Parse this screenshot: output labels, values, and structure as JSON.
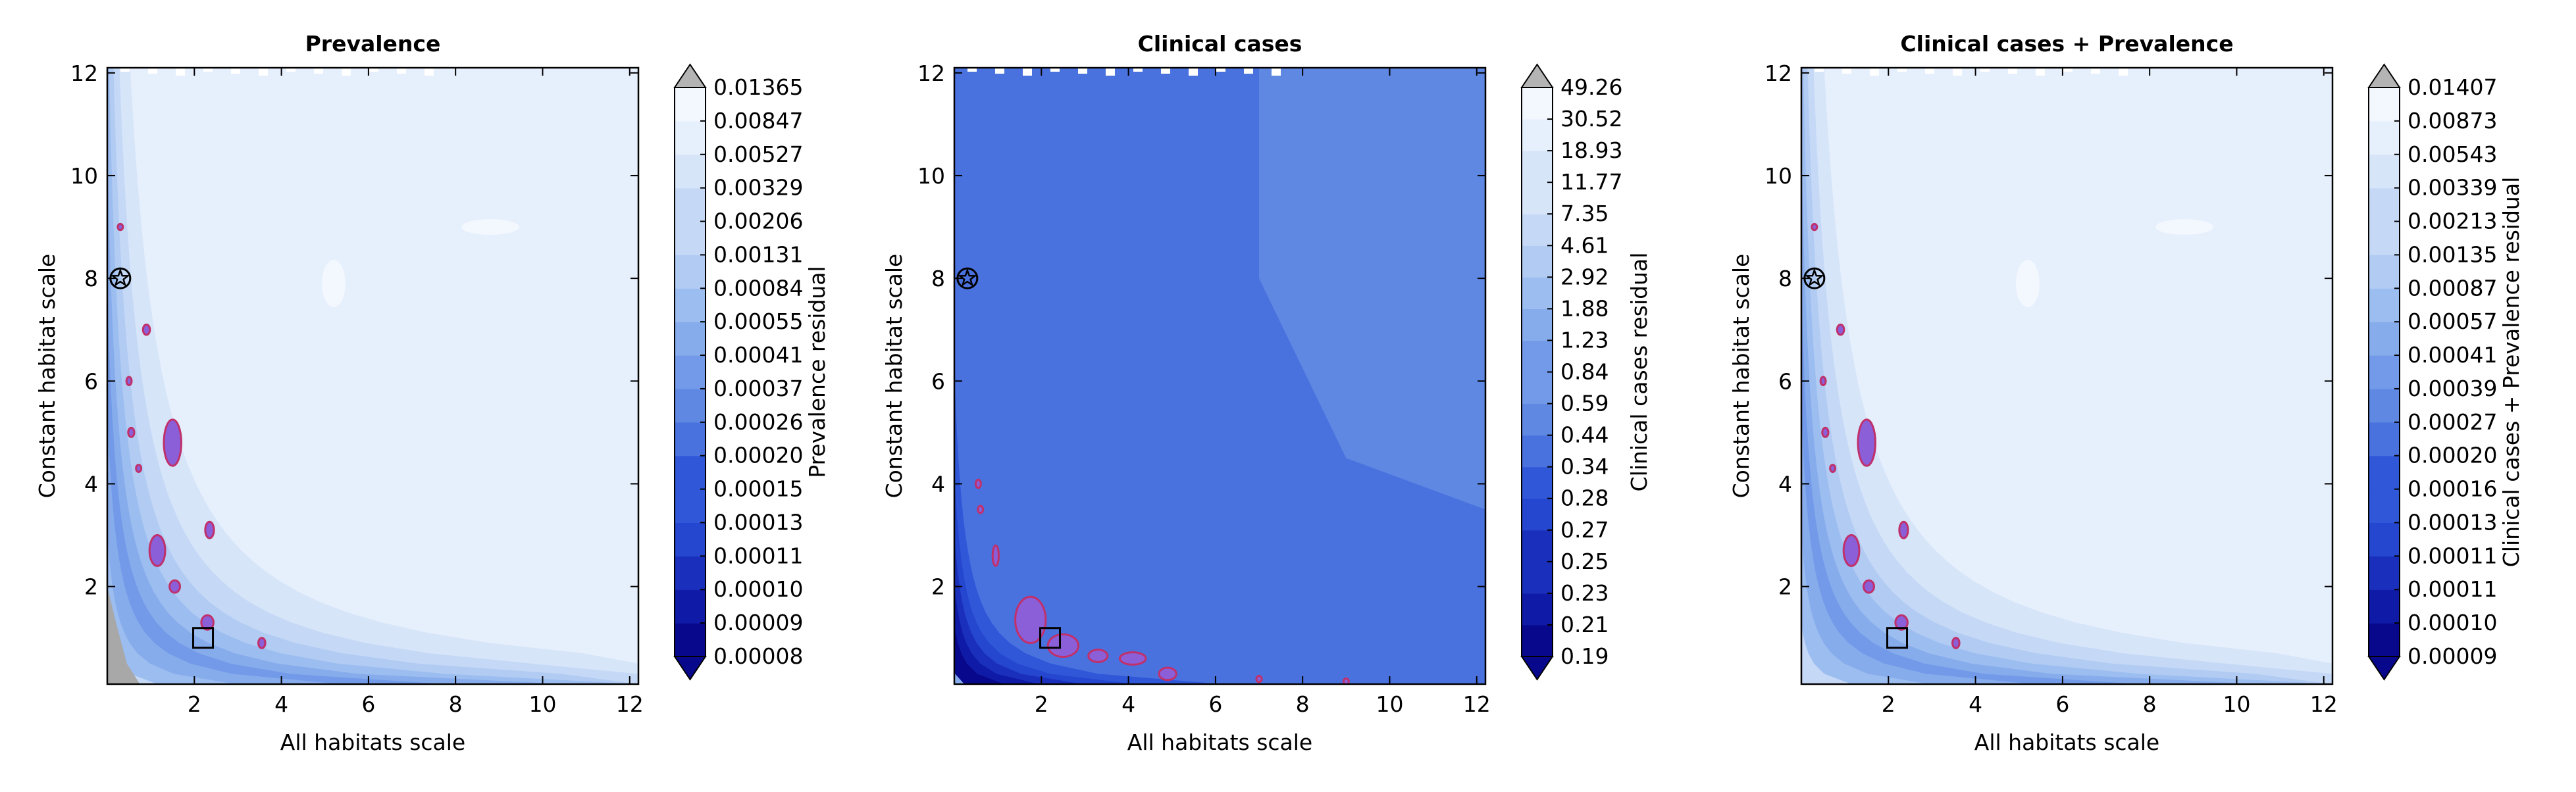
{
  "colors": {
    "palette": [
      "#08088c",
      "#0f1ba6",
      "#1a30bd",
      "#2546cf",
      "#3057d8",
      "#4a72df",
      "#5f88e3",
      "#729ae8",
      "#87acec",
      "#9cbdf0",
      "#b1cbf3",
      "#c5d9f6",
      "#d7e5f9",
      "#e6effc",
      "#f3f7fe"
    ],
    "over": "#b4b4b4",
    "under": "#08088c",
    "highlight_fill": "#8a5fd8",
    "highlight_edge": "#c0306a",
    "grey_region": "#a8a8a8"
  },
  "chart_data": [
    {
      "type": "heatmap",
      "title": "Prevalence",
      "xlabel": "All habitats scale",
      "ylabel": "Constant habitat scale",
      "xlim": [
        0,
        12.2
      ],
      "ylim": [
        0.1,
        12.1
      ],
      "xticks": [
        "2",
        "4",
        "6",
        "8",
        "10",
        "12"
      ],
      "yticks": [
        "2",
        "4",
        "6",
        "8",
        "10",
        "12"
      ],
      "colorbar_label": "Prevalence residual",
      "colorbar_levels": [
        "0.00008",
        "0.00009",
        "0.00010",
        "0.00011",
        "0.00013",
        "0.00015",
        "0.00020",
        "0.00026",
        "0.00037",
        "0.00041",
        "0.00055",
        "0.00084",
        "0.00131",
        "0.00206",
        "0.00329",
        "0.00527",
        "0.00847",
        "0.01365"
      ],
      "colorbar_extend": "both",
      "grey_region": true,
      "markers": [
        {
          "type": "star",
          "x": 0.3,
          "y": 8.0
        },
        {
          "type": "square",
          "x": 2.2,
          "y": 1.0
        }
      ],
      "highlight_regions": [
        {
          "x": 1.5,
          "y": 4.8,
          "rx": 0.2,
          "ry": 0.45
        },
        {
          "x": 1.15,
          "y": 2.7,
          "rx": 0.18,
          "ry": 0.3
        },
        {
          "x": 2.35,
          "y": 3.1,
          "rx": 0.1,
          "ry": 0.16
        },
        {
          "x": 1.55,
          "y": 2.0,
          "rx": 0.12,
          "ry": 0.12
        },
        {
          "x": 2.3,
          "y": 1.3,
          "rx": 0.14,
          "ry": 0.14
        },
        {
          "x": 3.55,
          "y": 0.9,
          "rx": 0.08,
          "ry": 0.1
        },
        {
          "x": 0.55,
          "y": 5.0,
          "rx": 0.07,
          "ry": 0.09
        },
        {
          "x": 0.9,
          "y": 7.0,
          "rx": 0.08,
          "ry": 0.1
        },
        {
          "x": 0.5,
          "y": 6.0,
          "rx": 0.06,
          "ry": 0.08
        },
        {
          "x": 0.72,
          "y": 4.3,
          "rx": 0.05,
          "ry": 0.07
        },
        {
          "x": 0.3,
          "y": 9.0,
          "rx": 0.05,
          "ry": 0.06
        }
      ]
    },
    {
      "type": "heatmap",
      "title": "Clinical cases",
      "xlabel": "All habitats scale",
      "ylabel": "Constant habitat scale",
      "xlim": [
        0,
        12.2
      ],
      "ylim": [
        0.1,
        12.1
      ],
      "xticks": [
        "2",
        "4",
        "6",
        "8",
        "10",
        "12"
      ],
      "yticks": [
        "2",
        "4",
        "6",
        "8",
        "10",
        "12"
      ],
      "colorbar_label": "Clinical cases residual",
      "colorbar_levels": [
        "0.19",
        "0.21",
        "0.23",
        "0.25",
        "0.27",
        "0.28",
        "0.34",
        "0.44",
        "0.59",
        "0.84",
        "1.23",
        "1.88",
        "2.92",
        "4.61",
        "7.35",
        "11.77",
        "18.93",
        "30.52",
        "49.26"
      ],
      "colorbar_extend": "both",
      "grey_region": false,
      "markers": [
        {
          "type": "star",
          "x": 0.3,
          "y": 8.0
        },
        {
          "type": "square",
          "x": 2.2,
          "y": 1.0
        }
      ],
      "highlight_regions": [
        {
          "x": 1.75,
          "y": 1.35,
          "rx": 0.35,
          "ry": 0.45
        },
        {
          "x": 2.5,
          "y": 0.85,
          "rx": 0.35,
          "ry": 0.22
        },
        {
          "x": 3.3,
          "y": 0.65,
          "rx": 0.22,
          "ry": 0.12
        },
        {
          "x": 4.1,
          "y": 0.6,
          "rx": 0.3,
          "ry": 0.12
        },
        {
          "x": 4.9,
          "y": 0.3,
          "rx": 0.2,
          "ry": 0.12
        },
        {
          "x": 0.95,
          "y": 2.6,
          "rx": 0.07,
          "ry": 0.2
        },
        {
          "x": 0.55,
          "y": 4.0,
          "rx": 0.06,
          "ry": 0.08
        },
        {
          "x": 0.6,
          "y": 3.5,
          "rx": 0.05,
          "ry": 0.07
        },
        {
          "x": 7.0,
          "y": 0.2,
          "rx": 0.05,
          "ry": 0.06
        },
        {
          "x": 9.0,
          "y": 0.15,
          "rx": 0.06,
          "ry": 0.06
        }
      ]
    },
    {
      "type": "heatmap",
      "title": "Clinical cases + Prevalence",
      "xlabel": "All habitats scale",
      "ylabel": "Constant habitat scale",
      "xlim": [
        0,
        12.2
      ],
      "ylim": [
        0.1,
        12.1
      ],
      "xticks": [
        "2",
        "4",
        "6",
        "8",
        "10",
        "12"
      ],
      "yticks": [
        "2",
        "4",
        "6",
        "8",
        "10",
        "12"
      ],
      "colorbar_label": "Clinical cases + Prevalence residual",
      "colorbar_levels": [
        "0.00009",
        "0.00010",
        "0.00011",
        "0.00011",
        "0.00013",
        "0.00016",
        "0.00020",
        "0.00027",
        "0.00039",
        "0.00041",
        "0.00057",
        "0.00087",
        "0.00135",
        "0.00213",
        "0.00339",
        "0.00543",
        "0.00873",
        "0.01407"
      ],
      "colorbar_extend": "both",
      "grey_region": false,
      "markers": [
        {
          "type": "star",
          "x": 0.3,
          "y": 8.0
        },
        {
          "type": "square",
          "x": 2.2,
          "y": 1.0
        }
      ],
      "highlight_regions": [
        {
          "x": 1.5,
          "y": 4.8,
          "rx": 0.2,
          "ry": 0.45
        },
        {
          "x": 1.15,
          "y": 2.7,
          "rx": 0.18,
          "ry": 0.3
        },
        {
          "x": 2.35,
          "y": 3.1,
          "rx": 0.1,
          "ry": 0.16
        },
        {
          "x": 1.55,
          "y": 2.0,
          "rx": 0.12,
          "ry": 0.12
        },
        {
          "x": 2.3,
          "y": 1.3,
          "rx": 0.14,
          "ry": 0.14
        },
        {
          "x": 3.55,
          "y": 0.9,
          "rx": 0.08,
          "ry": 0.1
        },
        {
          "x": 0.55,
          "y": 5.0,
          "rx": 0.07,
          "ry": 0.09
        },
        {
          "x": 0.9,
          "y": 7.0,
          "rx": 0.08,
          "ry": 0.1
        },
        {
          "x": 0.5,
          "y": 6.0,
          "rx": 0.06,
          "ry": 0.08
        },
        {
          "x": 0.72,
          "y": 4.3,
          "rx": 0.05,
          "ry": 0.07
        },
        {
          "x": 0.3,
          "y": 9.0,
          "rx": 0.05,
          "ry": 0.06
        }
      ]
    }
  ]
}
